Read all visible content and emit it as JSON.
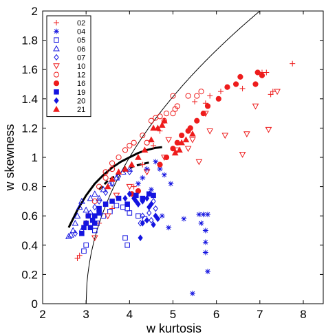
{
  "chart_data": {
    "type": "scatter",
    "title": "",
    "xlabel": "w kurtosis",
    "ylabel": "w skewness",
    "xlim": [
      2,
      8.3
    ],
    "ylim": [
      0,
      2
    ],
    "xticks": [
      "2",
      "3",
      "4",
      "5",
      "6",
      "7",
      "8"
    ],
    "yticks": [
      "0",
      "0.2",
      "0.4",
      "0.6",
      "0.8",
      "1",
      "1.2",
      "1.4",
      "1.6",
      "1.8",
      "2"
    ],
    "grid": false,
    "legend_position": "top-left",
    "colors": {
      "red": "#ee1c1c",
      "blue": "#1414e0"
    },
    "series": [
      {
        "name": "02",
        "marker": "plus",
        "color": "red",
        "filled": false,
        "points": [
          [
            2.8,
            0.31
          ],
          [
            2.85,
            0.33
          ],
          [
            3.3,
            0.55
          ],
          [
            3.6,
            0.65
          ],
          [
            4.1,
            0.8
          ],
          [
            4.3,
            0.95
          ],
          [
            4.55,
            1.08
          ],
          [
            4.7,
            1.18
          ],
          [
            5.5,
            1.38
          ],
          [
            5.75,
            1.37
          ],
          [
            5.85,
            1.42
          ],
          [
            6.1,
            1.45
          ],
          [
            6.6,
            1.47
          ],
          [
            7.05,
            1.58
          ],
          [
            7.15,
            1.58
          ],
          [
            7.75,
            1.64
          ],
          [
            7.25,
            1.43
          ],
          [
            7.3,
            1.45
          ]
        ]
      },
      {
        "name": "04",
        "marker": "star",
        "color": "blue",
        "filled": false,
        "points": [
          [
            4.4,
            0.92
          ],
          [
            4.6,
            0.97
          ],
          [
            4.7,
            0.92
          ],
          [
            4.3,
            0.86
          ],
          [
            4.8,
            0.88
          ],
          [
            4.95,
            0.82
          ],
          [
            4.75,
            0.6
          ],
          [
            4.9,
            0.52
          ],
          [
            5.25,
            0.58
          ],
          [
            5.6,
            0.61
          ],
          [
            5.7,
            0.61
          ],
          [
            5.8,
            0.61
          ],
          [
            5.65,
            0.55
          ],
          [
            5.75,
            0.5
          ],
          [
            5.75,
            0.42
          ],
          [
            5.75,
            0.35
          ],
          [
            5.8,
            0.22
          ],
          [
            5.45,
            0.07
          ],
          [
            4.2,
            0.82
          ],
          [
            4.5,
            0.78
          ]
        ]
      },
      {
        "name": "05",
        "marker": "square",
        "color": "blue",
        "filled": false,
        "points": [
          [
            2.95,
            0.36
          ],
          [
            3.0,
            0.4
          ],
          [
            3.25,
            0.55
          ],
          [
            3.4,
            0.6
          ],
          [
            3.55,
            0.63
          ],
          [
            3.7,
            0.67
          ],
          [
            3.85,
            0.66
          ],
          [
            3.95,
            0.65
          ],
          [
            3.9,
            0.45
          ],
          [
            3.95,
            0.4
          ],
          [
            4.0,
            0.62
          ],
          [
            4.2,
            0.6
          ],
          [
            4.35,
            0.58
          ],
          [
            3.2,
            0.5
          ]
        ]
      },
      {
        "name": "06",
        "marker": "triangle-up",
        "color": "blue",
        "filled": false,
        "points": [
          [
            2.6,
            0.46
          ],
          [
            2.65,
            0.47
          ],
          [
            2.7,
            0.5
          ],
          [
            2.75,
            0.55
          ],
          [
            2.8,
            0.6
          ],
          [
            2.85,
            0.66
          ],
          [
            2.9,
            0.7
          ],
          [
            3.0,
            0.64
          ],
          [
            3.1,
            0.72
          ],
          [
            3.2,
            0.75
          ],
          [
            3.3,
            0.72
          ],
          [
            3.4,
            0.78
          ],
          [
            3.55,
            0.82
          ],
          [
            3.7,
            0.86
          ],
          [
            3.85,
            0.9
          ],
          [
            4.0,
            0.92
          ]
        ]
      },
      {
        "name": "07",
        "marker": "diamond",
        "color": "blue",
        "filled": false,
        "points": [
          [
            2.75,
            0.48
          ],
          [
            2.9,
            0.5
          ],
          [
            3.0,
            0.55
          ],
          [
            3.1,
            0.62
          ],
          [
            3.2,
            0.66
          ],
          [
            3.3,
            0.7
          ],
          [
            3.45,
            0.76
          ],
          [
            3.6,
            0.82
          ],
          [
            3.75,
            0.87
          ],
          [
            4.0,
            0.9
          ],
          [
            4.25,
            0.55
          ],
          [
            4.3,
            0.6
          ],
          [
            4.45,
            0.62
          ],
          [
            4.55,
            0.7
          ],
          [
            4.6,
            0.65
          ],
          [
            4.5,
            0.57
          ]
        ]
      },
      {
        "name": "10",
        "marker": "triangle-down",
        "color": "red",
        "filled": false,
        "points": [
          [
            3.2,
            0.45
          ],
          [
            3.5,
            0.6
          ],
          [
            3.7,
            0.74
          ],
          [
            4.0,
            0.8
          ],
          [
            4.4,
            0.9
          ],
          [
            4.8,
            1.0
          ],
          [
            4.9,
            1.12
          ],
          [
            5.1,
            1.05
          ],
          [
            5.35,
            1.06
          ],
          [
            5.45,
            1.12
          ],
          [
            5.6,
            0.97
          ],
          [
            5.75,
            1.3
          ],
          [
            5.85,
            1.18
          ],
          [
            6.6,
            1.02
          ],
          [
            6.7,
            1.16
          ],
          [
            6.2,
            1.15
          ],
          [
            6.9,
            1.35
          ],
          [
            7.2,
            1.19
          ],
          [
            7.4,
            1.45
          ]
        ]
      },
      {
        "name": "12",
        "marker": "circle",
        "color": "red",
        "filled": false,
        "points": [
          [
            3.0,
            0.55
          ],
          [
            3.05,
            0.6
          ],
          [
            3.2,
            0.7
          ],
          [
            3.3,
            0.8
          ],
          [
            3.45,
            0.86
          ],
          [
            3.45,
            0.9
          ],
          [
            3.6,
            0.92
          ],
          [
            3.75,
            1.0
          ],
          [
            3.9,
            1.05
          ],
          [
            4.0,
            1.08
          ],
          [
            4.1,
            1.1
          ],
          [
            4.3,
            1.15
          ],
          [
            4.4,
            1.1
          ],
          [
            4.5,
            1.25
          ],
          [
            4.6,
            1.27
          ],
          [
            4.7,
            1.28
          ],
          [
            4.8,
            1.25
          ],
          [
            4.85,
            1.3
          ],
          [
            5.0,
            1.3
          ],
          [
            5.05,
            1.33
          ],
          [
            5.1,
            1.35
          ],
          [
            5.35,
            1.42
          ],
          [
            5.55,
            1.42
          ],
          [
            5.65,
            1.45
          ],
          [
            5.0,
            1.42
          ],
          [
            3.6,
            0.96
          ]
        ]
      },
      {
        "name": "16",
        "marker": "circle",
        "color": "red",
        "filled": true,
        "points": [
          [
            4.7,
            0.95
          ],
          [
            4.85,
            1.0
          ],
          [
            5.0,
            1.06
          ],
          [
            5.1,
            1.1
          ],
          [
            5.2,
            1.15
          ],
          [
            5.35,
            1.18
          ],
          [
            5.4,
            1.2
          ],
          [
            5.55,
            1.25
          ],
          [
            5.7,
            1.3
          ],
          [
            5.8,
            1.35
          ],
          [
            6.05,
            1.4
          ],
          [
            6.25,
            1.48
          ],
          [
            6.45,
            1.5
          ],
          [
            6.55,
            1.55
          ],
          [
            6.9,
            1.5
          ],
          [
            6.95,
            1.58
          ],
          [
            7.05,
            1.56
          ],
          [
            4.2,
            0.77
          ],
          [
            4.05,
            0.75
          ]
        ]
      },
      {
        "name": "19",
        "marker": "square",
        "color": "blue",
        "filled": true,
        "points": [
          [
            2.9,
            0.48
          ],
          [
            2.95,
            0.52
          ],
          [
            3.0,
            0.55
          ],
          [
            3.1,
            0.52
          ],
          [
            3.15,
            0.57
          ],
          [
            3.2,
            0.6
          ],
          [
            3.3,
            0.65
          ],
          [
            3.45,
            0.68
          ],
          [
            3.6,
            0.7
          ],
          [
            3.75,
            0.72
          ],
          [
            3.95,
            0.68
          ],
          [
            4.15,
            0.74
          ],
          [
            4.3,
            0.72
          ],
          [
            4.45,
            0.75
          ],
          [
            4.55,
            0.74
          ],
          [
            3.05,
            0.6
          ],
          [
            3.2,
            0.55
          ],
          [
            3.3,
            0.62
          ]
        ]
      },
      {
        "name": "20",
        "marker": "diamond",
        "color": "blue",
        "filled": true,
        "points": [
          [
            3.9,
            0.72
          ],
          [
            4.0,
            0.75
          ],
          [
            4.1,
            0.72
          ],
          [
            4.15,
            0.7
          ],
          [
            4.2,
            0.68
          ],
          [
            4.3,
            0.7
          ],
          [
            4.4,
            0.72
          ],
          [
            4.5,
            0.68
          ],
          [
            4.45,
            0.66
          ],
          [
            4.25,
            0.45
          ],
          [
            4.3,
            0.55
          ],
          [
            4.4,
            0.57
          ],
          [
            4.6,
            0.6
          ],
          [
            4.65,
            0.58
          ],
          [
            4.55,
            0.54
          ]
        ]
      },
      {
        "name": "21",
        "marker": "triangle-up",
        "color": "red",
        "filled": true,
        "points": [
          [
            3.5,
            0.8
          ],
          [
            3.6,
            0.85
          ],
          [
            3.75,
            0.9
          ],
          [
            3.9,
            0.92
          ],
          [
            4.05,
            0.95
          ],
          [
            4.2,
            1.0
          ],
          [
            4.35,
            1.05
          ],
          [
            4.5,
            1.12
          ],
          [
            4.55,
            1.2
          ],
          [
            4.65,
            1.2
          ],
          [
            4.75,
            1.22
          ],
          [
            4.8,
            1.25
          ],
          [
            5.05,
            1.03
          ],
          [
            5.15,
            1.05
          ],
          [
            5.2,
            1.1
          ],
          [
            5.3,
            1.12
          ],
          [
            5.45,
            1.16
          ]
        ]
      }
    ],
    "lines": [
      {
        "style": "thin solid black",
        "curve": "sqrt(x - 3)",
        "x_range": [
          3,
          8.3
        ]
      },
      {
        "style": "thick solid black",
        "points": [
          [
            2.6,
            0.52
          ],
          [
            2.8,
            0.64
          ],
          [
            3.0,
            0.74
          ],
          [
            3.2,
            0.82
          ],
          [
            3.4,
            0.88
          ],
          [
            3.6,
            0.93
          ],
          [
            3.8,
            0.97
          ],
          [
            4.0,
            1.0
          ],
          [
            4.2,
            1.03
          ],
          [
            4.4,
            1.05
          ],
          [
            4.6,
            1.065
          ],
          [
            4.75,
            1.07
          ]
        ]
      },
      {
        "style": "thick dashed black",
        "points": [
          [
            3.3,
            0.78
          ],
          [
            3.5,
            0.84
          ],
          [
            3.7,
            0.88
          ],
          [
            3.9,
            0.91
          ],
          [
            4.1,
            0.94
          ],
          [
            4.3,
            0.955
          ],
          [
            4.45,
            0.965
          ]
        ]
      }
    ]
  }
}
